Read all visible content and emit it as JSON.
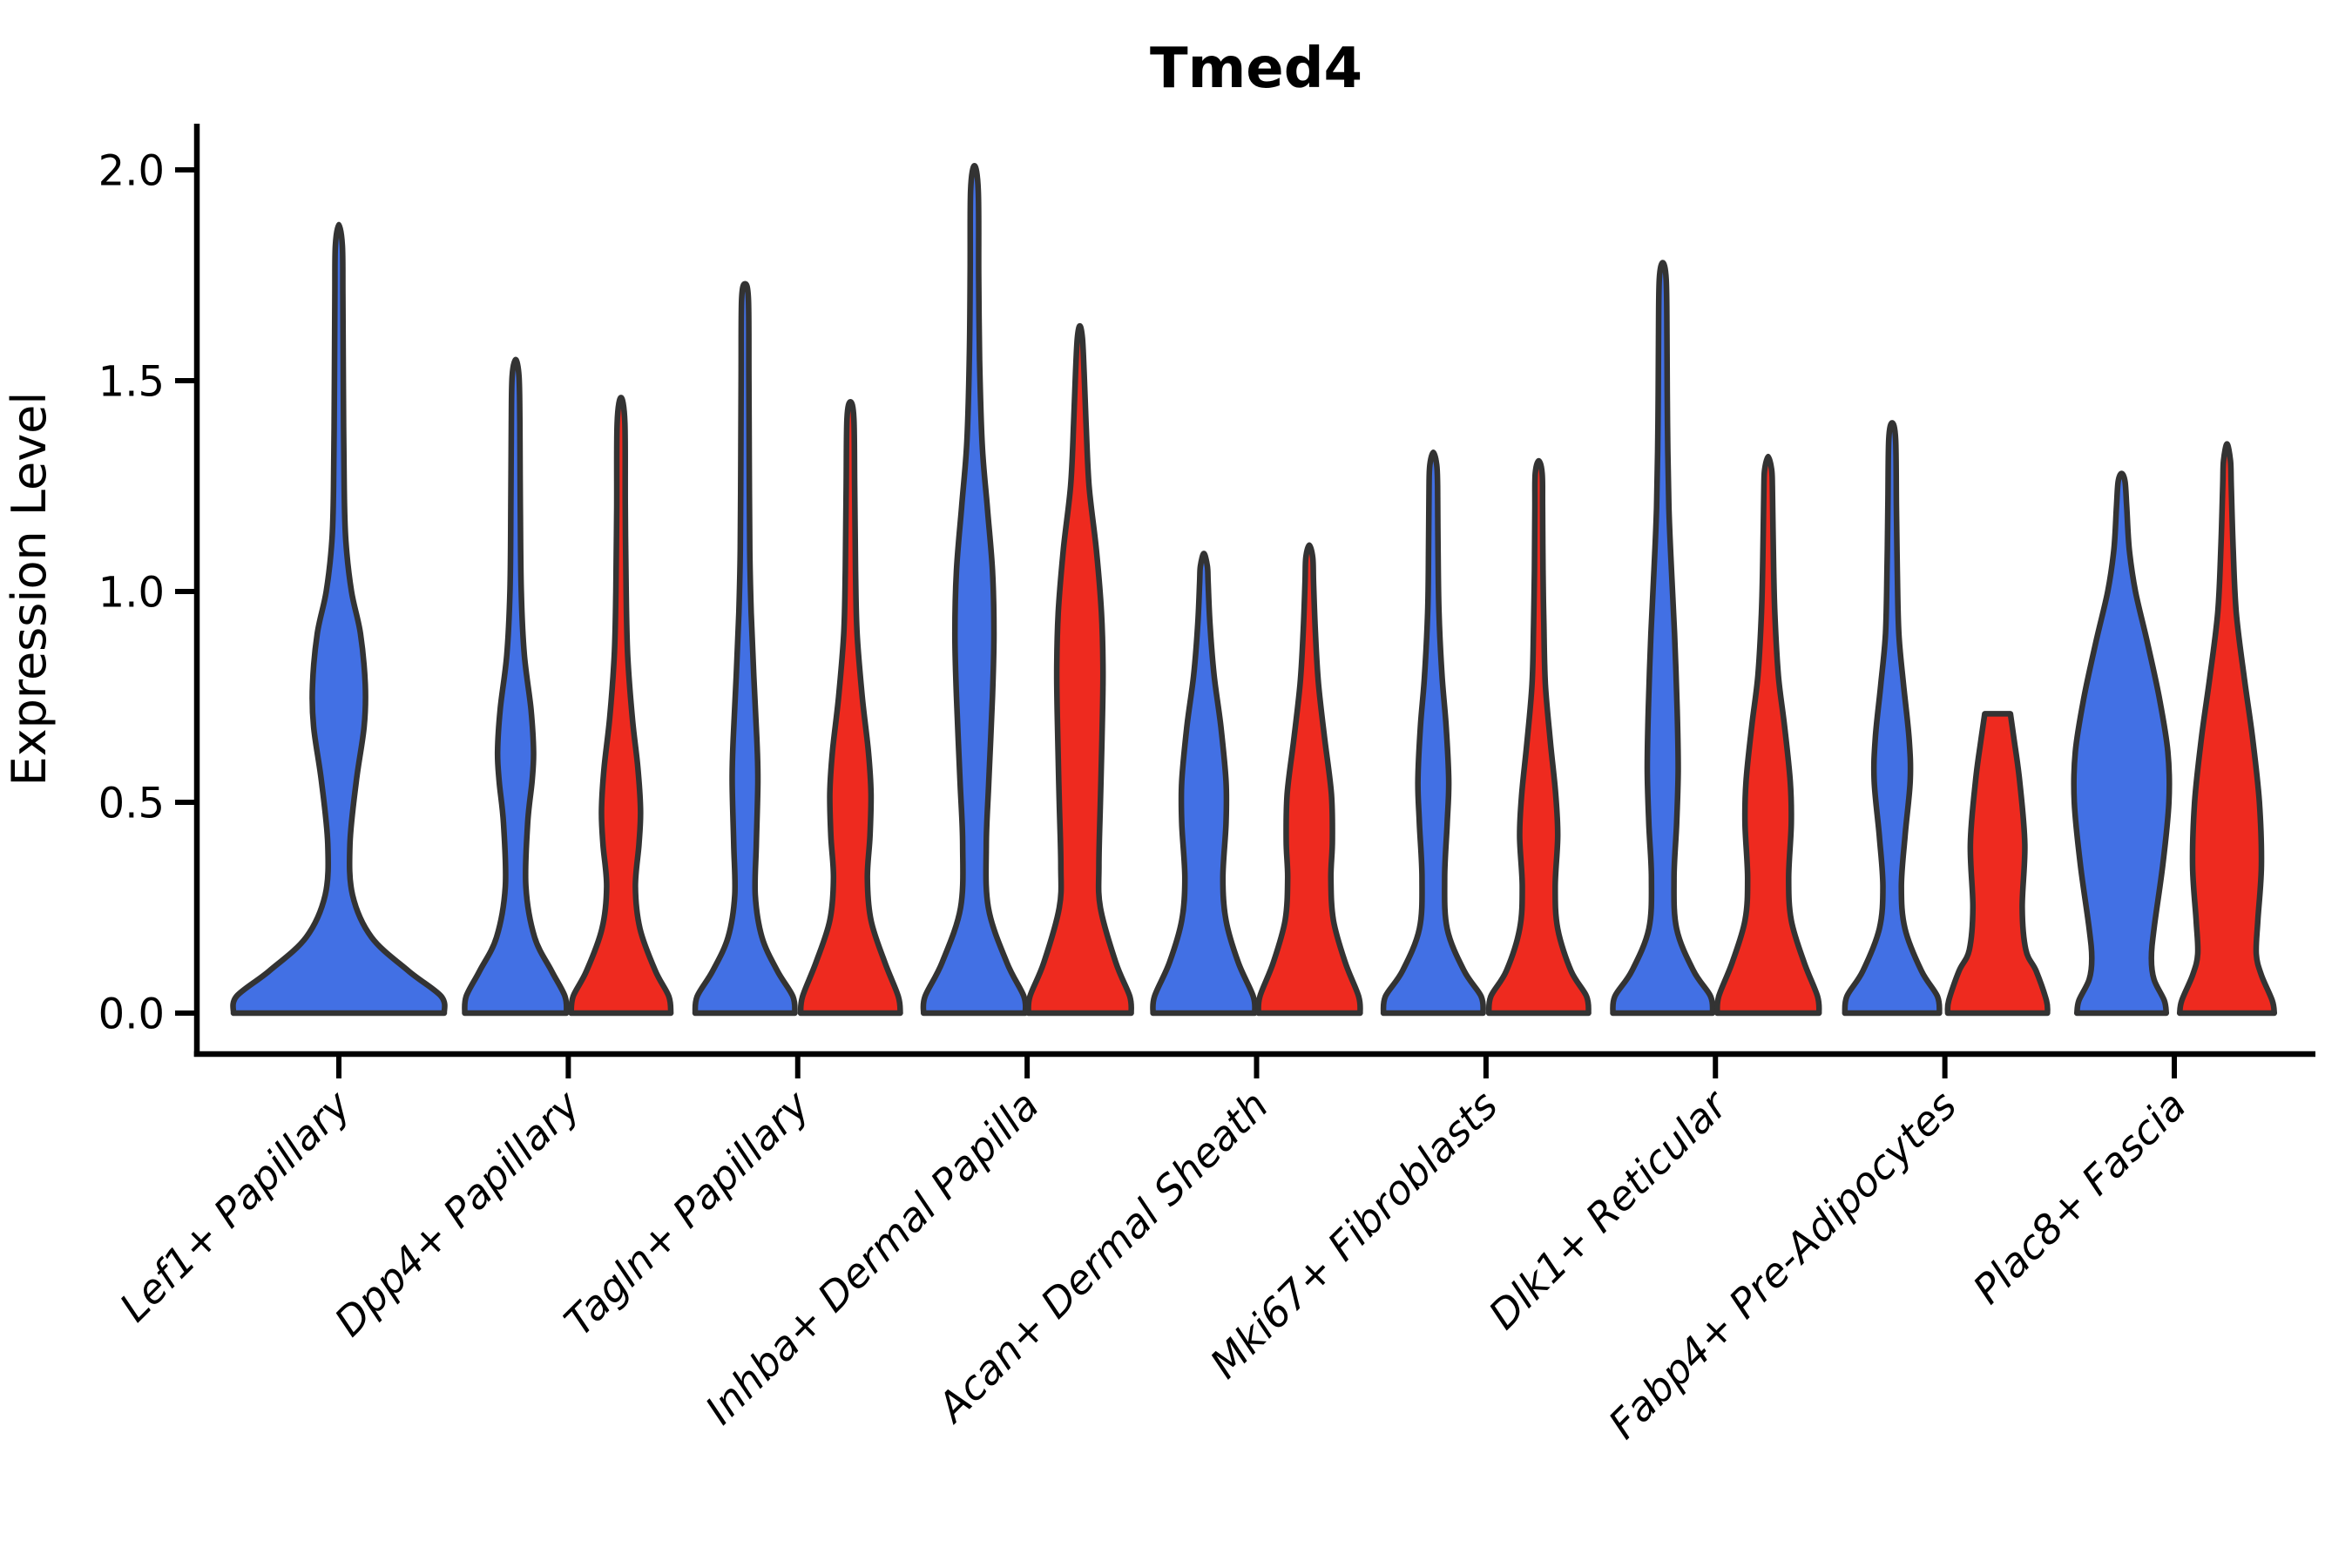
{
  "chart_data": {
    "type": "violin",
    "title": "Tmed4",
    "ylabel": "Expression Level",
    "xlabel": "",
    "ylim": [
      0,
      2.11
    ],
    "yticks": [
      0.0,
      0.5,
      1.0,
      1.5,
      2.0
    ],
    "ytick_labels": [
      "0.0",
      "0.5",
      "1.0",
      "1.5",
      "2.0"
    ],
    "grid": false,
    "legend": "none",
    "categories": [
      "Lef1+ Papillary",
      "Dpp4+ Papillary",
      "Tagln+ Papillary",
      "Inhba+ Dermal Papilla",
      "Acan+ Dermal Sheath",
      "Mki67+ Fibroblasts",
      "Dlk1+ Reticular",
      "Fabp4+ Pre-Adipocytes",
      "Plac8+ Fascia"
    ],
    "series": [
      {
        "name": "blue",
        "color": "#4270e4",
        "max_expression": [
          1.87,
          1.55,
          1.73,
          2.01,
          1.09,
          1.33,
          1.78,
          1.4,
          1.28
        ]
      },
      {
        "name": "red",
        "color": "#ee2a1f",
        "max_expression": [
          null,
          1.46,
          1.45,
          1.63,
          1.11,
          1.31,
          1.32,
          0.71,
          1.35
        ]
      }
    ],
    "violins": [
      {
        "category": 0,
        "group": "blue",
        "single": true,
        "max": 1.87,
        "flat_top": false,
        "profile": [
          [
            0,
            1.0
          ],
          [
            0.04,
            0.97
          ],
          [
            0.1,
            0.66
          ],
          [
            0.18,
            0.31
          ],
          [
            0.28,
            0.13
          ],
          [
            0.4,
            0.105
          ],
          [
            0.55,
            0.165
          ],
          [
            0.68,
            0.24
          ],
          [
            0.78,
            0.25
          ],
          [
            0.9,
            0.205
          ],
          [
            1.0,
            0.12
          ],
          [
            1.12,
            0.066
          ],
          [
            1.25,
            0.05
          ],
          [
            1.5,
            0.042
          ],
          [
            1.7,
            0.038
          ],
          [
            1.82,
            0.033
          ],
          [
            1.87,
            0
          ]
        ]
      },
      {
        "category": 1,
        "group": "blue",
        "single": false,
        "max": 1.55,
        "flat_top": false,
        "profile": [
          [
            0,
            0.99
          ],
          [
            0.04,
            0.96
          ],
          [
            0.1,
            0.7
          ],
          [
            0.18,
            0.37
          ],
          [
            0.3,
            0.2
          ],
          [
            0.45,
            0.235
          ],
          [
            0.55,
            0.32
          ],
          [
            0.62,
            0.35
          ],
          [
            0.72,
            0.3
          ],
          [
            0.85,
            0.17
          ],
          [
            1.0,
            0.11
          ],
          [
            1.2,
            0.092
          ],
          [
            1.4,
            0.083
          ],
          [
            1.51,
            0.067
          ],
          [
            1.55,
            0
          ]
        ]
      },
      {
        "category": 1,
        "group": "red",
        "single": false,
        "max": 1.46,
        "flat_top": false,
        "profile": [
          [
            0,
            0.97
          ],
          [
            0.04,
            0.93
          ],
          [
            0.1,
            0.67
          ],
          [
            0.2,
            0.37
          ],
          [
            0.3,
            0.28
          ],
          [
            0.4,
            0.35
          ],
          [
            0.48,
            0.38
          ],
          [
            0.58,
            0.33
          ],
          [
            0.7,
            0.22
          ],
          [
            0.85,
            0.13
          ],
          [
            1.0,
            0.1
          ],
          [
            1.2,
            0.083
          ],
          [
            1.4,
            0.075
          ],
          [
            1.46,
            0
          ]
        ]
      },
      {
        "category": 2,
        "group": "blue",
        "single": false,
        "max": 1.73,
        "flat_top": false,
        "profile": [
          [
            0,
            0.97
          ],
          [
            0.04,
            0.93
          ],
          [
            0.1,
            0.63
          ],
          [
            0.18,
            0.33
          ],
          [
            0.28,
            0.2
          ],
          [
            0.4,
            0.22
          ],
          [
            0.55,
            0.25
          ],
          [
            0.65,
            0.23
          ],
          [
            0.8,
            0.17
          ],
          [
            0.95,
            0.12
          ],
          [
            1.1,
            0.092
          ],
          [
            1.3,
            0.083
          ],
          [
            1.5,
            0.075
          ],
          [
            1.69,
            0.067
          ],
          [
            1.73,
            0
          ]
        ]
      },
      {
        "category": 2,
        "group": "red",
        "single": false,
        "max": 1.45,
        "flat_top": false,
        "profile": [
          [
            0,
            0.97
          ],
          [
            0.04,
            0.93
          ],
          [
            0.12,
            0.67
          ],
          [
            0.22,
            0.4
          ],
          [
            0.32,
            0.33
          ],
          [
            0.42,
            0.38
          ],
          [
            0.52,
            0.4
          ],
          [
            0.62,
            0.35
          ],
          [
            0.75,
            0.23
          ],
          [
            0.9,
            0.13
          ],
          [
            1.05,
            0.1
          ],
          [
            1.25,
            0.083
          ],
          [
            1.41,
            0.067
          ],
          [
            1.45,
            0
          ]
        ]
      },
      {
        "category": 3,
        "group": "blue",
        "single": false,
        "max": 2.01,
        "flat_top": false,
        "profile": [
          [
            0,
            0.99
          ],
          [
            0.04,
            0.96
          ],
          [
            0.12,
            0.63
          ],
          [
            0.25,
            0.27
          ],
          [
            0.4,
            0.23
          ],
          [
            0.55,
            0.28
          ],
          [
            0.75,
            0.35
          ],
          [
            0.9,
            0.38
          ],
          [
            1.05,
            0.35
          ],
          [
            1.2,
            0.25
          ],
          [
            1.35,
            0.15
          ],
          [
            1.55,
            0.1
          ],
          [
            1.75,
            0.083
          ],
          [
            1.95,
            0.075
          ],
          [
            2.01,
            0
          ]
        ]
      },
      {
        "category": 3,
        "group": "red",
        "single": false,
        "max": 1.63,
        "flat_top": false,
        "profile": [
          [
            0,
            1.0
          ],
          [
            0.04,
            0.97
          ],
          [
            0.12,
            0.7
          ],
          [
            0.25,
            0.4
          ],
          [
            0.35,
            0.37
          ],
          [
            0.5,
            0.4
          ],
          [
            0.65,
            0.43
          ],
          [
            0.81,
            0.45
          ],
          [
            0.95,
            0.42
          ],
          [
            1.1,
            0.32
          ],
          [
            1.25,
            0.18
          ],
          [
            1.4,
            0.12
          ],
          [
            1.52,
            0.083
          ],
          [
            1.6,
            0.05
          ],
          [
            1.63,
            0
          ]
        ]
      },
      {
        "category": 4,
        "group": "blue",
        "single": false,
        "max": 1.09,
        "flat_top": false,
        "profile": [
          [
            0,
            0.99
          ],
          [
            0.04,
            0.96
          ],
          [
            0.12,
            0.67
          ],
          [
            0.22,
            0.43
          ],
          [
            0.32,
            0.37
          ],
          [
            0.45,
            0.43
          ],
          [
            0.55,
            0.43
          ],
          [
            0.68,
            0.33
          ],
          [
            0.8,
            0.2
          ],
          [
            0.92,
            0.12
          ],
          [
            1.02,
            0.083
          ],
          [
            1.06,
            0.067
          ],
          [
            1.09,
            0
          ]
        ]
      },
      {
        "category": 4,
        "group": "red",
        "single": false,
        "max": 1.11,
        "flat_top": false,
        "profile": [
          [
            0,
            0.99
          ],
          [
            0.04,
            0.96
          ],
          [
            0.12,
            0.7
          ],
          [
            0.22,
            0.47
          ],
          [
            0.32,
            0.42
          ],
          [
            0.41,
            0.45
          ],
          [
            0.52,
            0.43
          ],
          [
            0.65,
            0.3
          ],
          [
            0.78,
            0.18
          ],
          [
            0.9,
            0.12
          ],
          [
            1.02,
            0.083
          ],
          [
            1.08,
            0.067
          ],
          [
            1.11,
            0
          ]
        ]
      },
      {
        "category": 5,
        "group": "blue",
        "single": false,
        "max": 1.33,
        "flat_top": false,
        "profile": [
          [
            0,
            0.97
          ],
          [
            0.04,
            0.93
          ],
          [
            0.1,
            0.6
          ],
          [
            0.2,
            0.27
          ],
          [
            0.32,
            0.22
          ],
          [
            0.45,
            0.27
          ],
          [
            0.55,
            0.3
          ],
          [
            0.68,
            0.25
          ],
          [
            0.8,
            0.17
          ],
          [
            0.95,
            0.11
          ],
          [
            1.1,
            0.092
          ],
          [
            1.25,
            0.083
          ],
          [
            1.3,
            0.067
          ],
          [
            1.33,
            0
          ]
        ]
      },
      {
        "category": 5,
        "group": "red",
        "single": false,
        "max": 1.31,
        "flat_top": false,
        "profile": [
          [
            0,
            0.97
          ],
          [
            0.04,
            0.93
          ],
          [
            0.1,
            0.63
          ],
          [
            0.2,
            0.37
          ],
          [
            0.3,
            0.32
          ],
          [
            0.42,
            0.37
          ],
          [
            0.52,
            0.33
          ],
          [
            0.64,
            0.23
          ],
          [
            0.78,
            0.13
          ],
          [
            0.92,
            0.1
          ],
          [
            1.05,
            0.083
          ],
          [
            1.2,
            0.075
          ],
          [
            1.28,
            0.067
          ],
          [
            1.31,
            0
          ]
        ]
      },
      {
        "category": 6,
        "group": "blue",
        "single": false,
        "max": 1.78,
        "flat_top": false,
        "profile": [
          [
            0,
            0.97
          ],
          [
            0.04,
            0.93
          ],
          [
            0.1,
            0.6
          ],
          [
            0.2,
            0.27
          ],
          [
            0.32,
            0.22
          ],
          [
            0.45,
            0.27
          ],
          [
            0.58,
            0.3
          ],
          [
            0.72,
            0.28
          ],
          [
            0.9,
            0.23
          ],
          [
            1.05,
            0.17
          ],
          [
            1.2,
            0.12
          ],
          [
            1.4,
            0.092
          ],
          [
            1.6,
            0.083
          ],
          [
            1.74,
            0.067
          ],
          [
            1.78,
            0
          ]
        ]
      },
      {
        "category": 6,
        "group": "red",
        "single": false,
        "max": 1.32,
        "flat_top": false,
        "profile": [
          [
            0,
            0.99
          ],
          [
            0.04,
            0.96
          ],
          [
            0.12,
            0.7
          ],
          [
            0.22,
            0.45
          ],
          [
            0.32,
            0.4
          ],
          [
            0.45,
            0.45
          ],
          [
            0.55,
            0.43
          ],
          [
            0.68,
            0.32
          ],
          [
            0.8,
            0.2
          ],
          [
            0.95,
            0.13
          ],
          [
            1.1,
            0.1
          ],
          [
            1.25,
            0.083
          ],
          [
            1.29,
            0.067
          ],
          [
            1.32,
            0
          ]
        ]
      },
      {
        "category": 7,
        "group": "blue",
        "single": false,
        "max": 1.4,
        "flat_top": false,
        "profile": [
          [
            0,
            0.92
          ],
          [
            0.04,
            0.88
          ],
          [
            0.1,
            0.57
          ],
          [
            0.2,
            0.25
          ],
          [
            0.3,
            0.18
          ],
          [
            0.42,
            0.25
          ],
          [
            0.55,
            0.35
          ],
          [
            0.65,
            0.33
          ],
          [
            0.78,
            0.22
          ],
          [
            0.9,
            0.13
          ],
          [
            1.05,
            0.1
          ],
          [
            1.2,
            0.083
          ],
          [
            1.36,
            0.067
          ],
          [
            1.4,
            0
          ]
        ]
      },
      {
        "category": 7,
        "group": "red",
        "single": false,
        "max": 0.71,
        "flat_top": true,
        "profile": [
          [
            0,
            0.97
          ],
          [
            0.03,
            0.95
          ],
          [
            0.1,
            0.75
          ],
          [
            0.15,
            0.55
          ],
          [
            0.25,
            0.48
          ],
          [
            0.4,
            0.53
          ],
          [
            0.55,
            0.43
          ],
          [
            0.65,
            0.32
          ],
          [
            0.71,
            0.25
          ]
        ]
      },
      {
        "category": 8,
        "group": "blue",
        "single": false,
        "max": 1.28,
        "flat_top": false,
        "profile": [
          [
            0,
            0.87
          ],
          [
            0.03,
            0.83
          ],
          [
            0.08,
            0.63
          ],
          [
            0.13,
            0.58
          ],
          [
            0.2,
            0.63
          ],
          [
            0.35,
            0.8
          ],
          [
            0.5,
            0.92
          ],
          [
            0.62,
            0.9
          ],
          [
            0.75,
            0.73
          ],
          [
            0.88,
            0.5
          ],
          [
            1.0,
            0.27
          ],
          [
            1.1,
            0.15
          ],
          [
            1.2,
            0.1
          ],
          [
            1.26,
            0.067
          ],
          [
            1.28,
            0
          ]
        ]
      },
      {
        "category": 8,
        "group": "red",
        "single": false,
        "max": 1.35,
        "flat_top": false,
        "profile": [
          [
            0,
            0.92
          ],
          [
            0.03,
            0.88
          ],
          [
            0.09,
            0.67
          ],
          [
            0.14,
            0.57
          ],
          [
            0.22,
            0.6
          ],
          [
            0.35,
            0.67
          ],
          [
            0.5,
            0.63
          ],
          [
            0.65,
            0.5
          ],
          [
            0.8,
            0.33
          ],
          [
            0.95,
            0.18
          ],
          [
            1.1,
            0.12
          ],
          [
            1.25,
            0.083
          ],
          [
            1.31,
            0.067
          ],
          [
            1.35,
            0
          ]
        ]
      }
    ]
  },
  "colors": {
    "blue_fill": "#4270e4",
    "red_fill": "#ee2a1f",
    "violin_edge": "#333333",
    "axis": "#000000",
    "background": "#ffffff"
  }
}
